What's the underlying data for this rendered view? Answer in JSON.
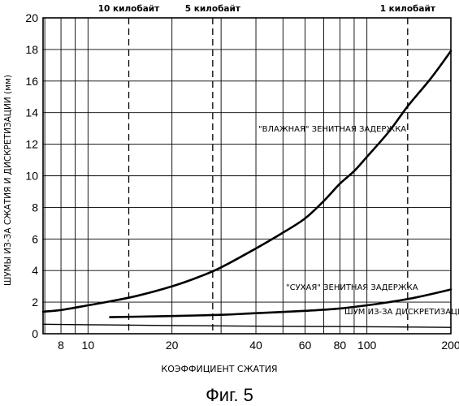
{
  "chart_data": {
    "type": "line",
    "title": "",
    "caption": "Фиг. 5",
    "xlabel": "КОЭФФИЦИЕНТ СЖАТИЯ",
    "ylabel": "ШУМЫ ИЗ-ЗА СЖАТИЯ И ДИСКРЕТИЗАЦИИ (мм)",
    "x_scale": "log",
    "xlim": [
      6.9,
      200
    ],
    "ylim": [
      0,
      20
    ],
    "grid": true,
    "x_major_ticks": [
      8,
      10,
      20,
      40,
      60,
      80,
      100,
      200
    ],
    "x_minor_grid": [
      7,
      9,
      30,
      50,
      70,
      90
    ],
    "y_ticks": [
      0,
      2,
      4,
      6,
      8,
      10,
      12,
      14,
      16,
      18,
      20
    ],
    "size_markers": [
      {
        "label": "10 килобайт",
        "x": 14
      },
      {
        "label": "5 килобайт",
        "x": 28
      },
      {
        "label": "1 килобайт",
        "x": 140
      }
    ],
    "series": [
      {
        "name": "\"ВЛАЖНАЯ\" ЗЕНИТНАЯ ЗАДЕРЖКА",
        "stroke_width": 2.6,
        "x": [
          6.9,
          8,
          10,
          12,
          15,
          20,
          25,
          30,
          40,
          50,
          60,
          70,
          80,
          90,
          100,
          120,
          140,
          170,
          200
        ],
        "y": [
          1.4,
          1.5,
          1.8,
          2.05,
          2.4,
          3.0,
          3.6,
          4.2,
          5.4,
          6.4,
          7.3,
          8.4,
          9.5,
          10.3,
          11.2,
          12.8,
          14.4,
          16.2,
          17.9
        ]
      },
      {
        "name": "\"СУХАЯ\" ЗЕНИТНАЯ ЗАДЕРЖКА",
        "stroke_width": 2.6,
        "x": [
          12,
          15,
          20,
          30,
          40,
          60,
          80,
          100,
          120,
          150,
          200
        ],
        "y": [
          1.05,
          1.08,
          1.12,
          1.2,
          1.3,
          1.45,
          1.6,
          1.8,
          2.0,
          2.3,
          2.8
        ]
      },
      {
        "name": "ШУМ ИЗ-ЗА ДИСКРЕТИЗАЦИИ",
        "stroke_width": 1.4,
        "x": [
          6.9,
          10,
          20,
          40,
          80,
          120,
          200
        ],
        "y": [
          0.6,
          0.57,
          0.52,
          0.48,
          0.45,
          0.43,
          0.4
        ]
      }
    ]
  },
  "colors": {
    "ink": "#000000",
    "background": "#ffffff"
  }
}
